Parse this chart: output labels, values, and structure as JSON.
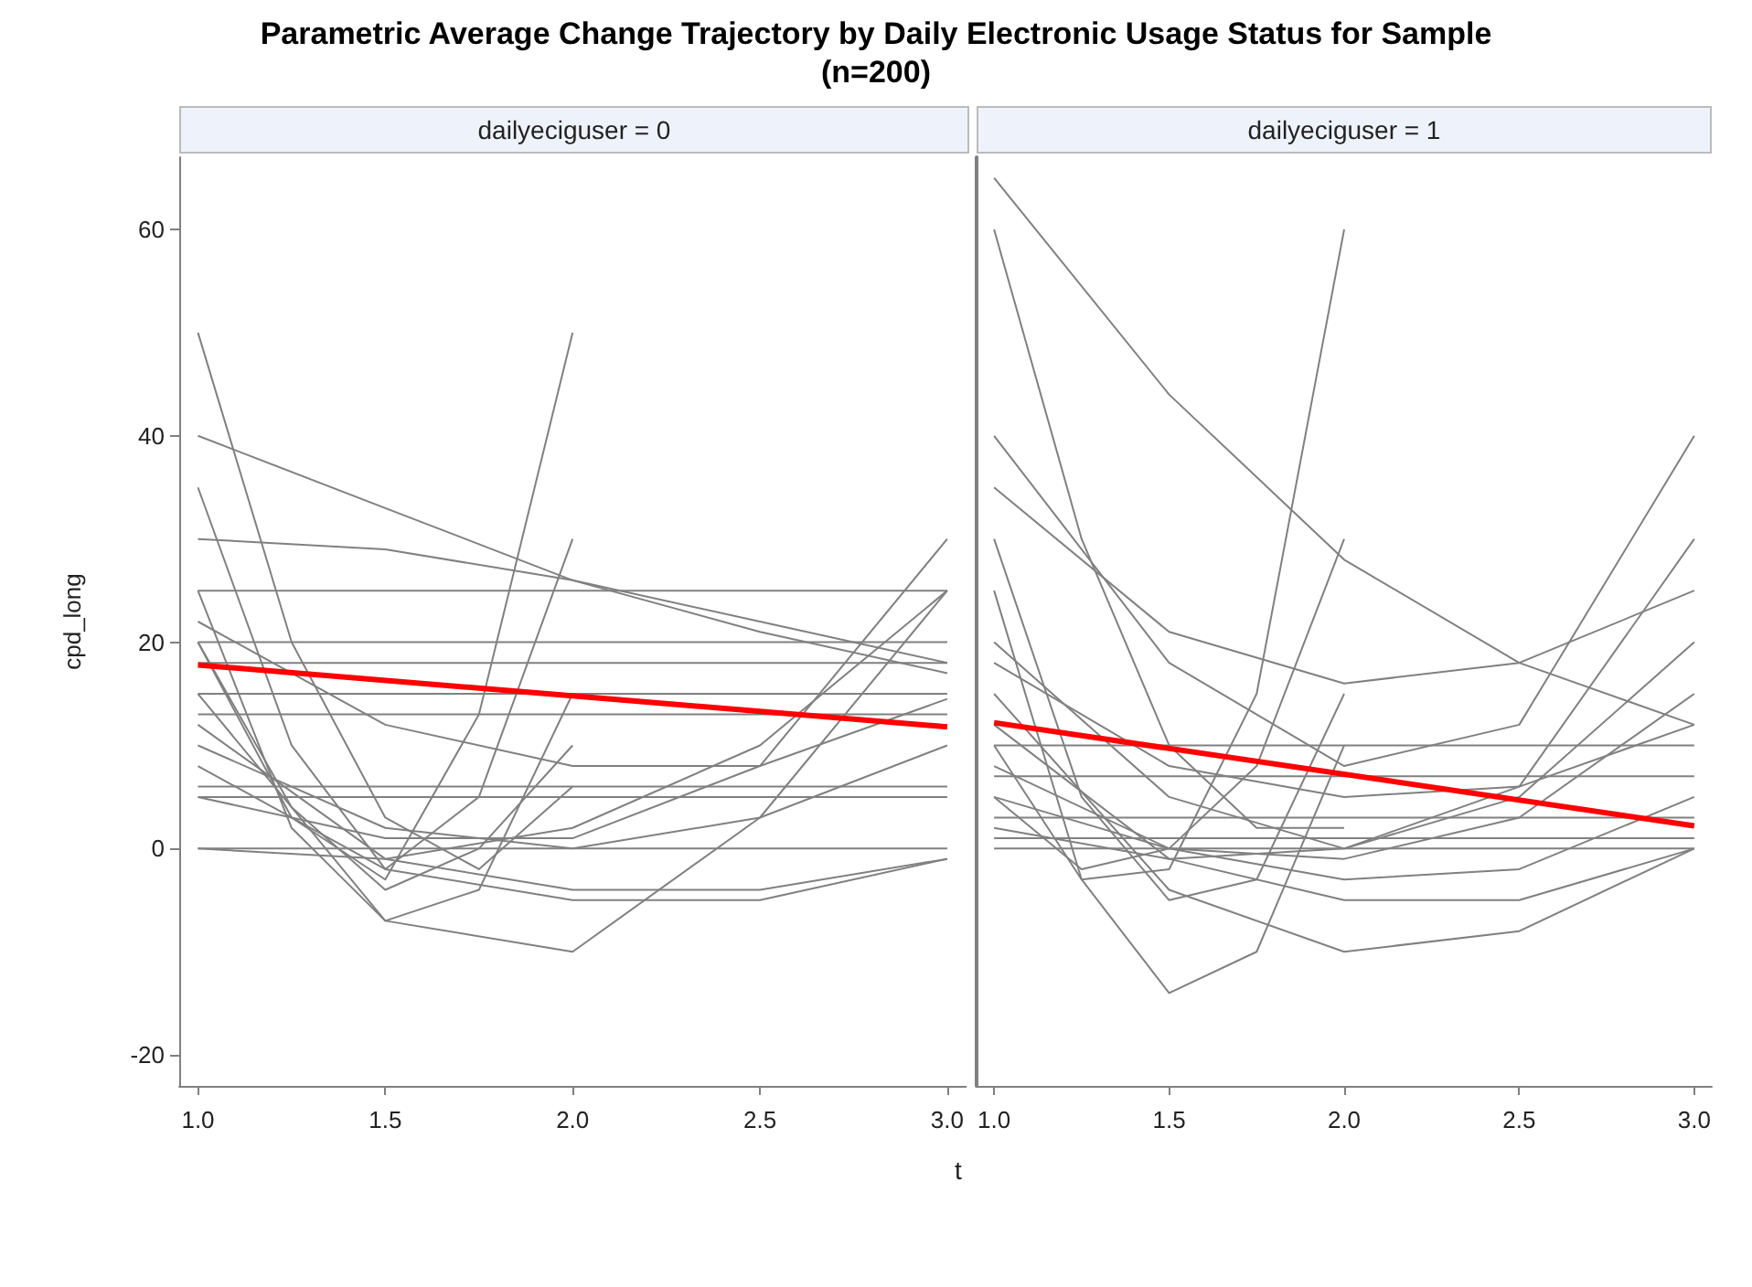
{
  "chart_data": [
    {
      "type": "line",
      "title": "Parametric Average Change Trajectory by Daily Electronic Usage Status for Sample\n(n=200)",
      "subtitle": "dailyeciguser = 0",
      "xlabel": "t",
      "ylabel": "cpd_long",
      "xlim": [
        0.95,
        3.05
      ],
      "xticks": [
        {
          "value": 1,
          "label": "1.0"
        },
        {
          "value": 1.5,
          "label": "1.5"
        },
        {
          "value": 2,
          "label": "2.0"
        },
        {
          "value": 2.5,
          "label": "2.5"
        },
        {
          "value": 3,
          "label": "3.0"
        }
      ],
      "ylim": [
        -23,
        67
      ],
      "yticks": [
        -20,
        0,
        20,
        40,
        60
      ],
      "grid": false,
      "marker": "none",
      "series": [
        {
          "color": "#808080",
          "x": [
            1,
            3
          ],
          "values": [
            25,
            25
          ]
        },
        {
          "color": "#808080",
          "x": [
            1,
            3
          ],
          "values": [
            20,
            20
          ]
        },
        {
          "color": "#808080",
          "x": [
            1,
            3
          ],
          "values": [
            18,
            18
          ]
        },
        {
          "color": "#808080",
          "x": [
            1,
            3
          ],
          "values": [
            15,
            15
          ]
        },
        {
          "color": "#808080",
          "x": [
            1,
            3
          ],
          "values": [
            13,
            13
          ]
        },
        {
          "color": "#808080",
          "x": [
            1,
            3
          ],
          "values": [
            6,
            6
          ]
        },
        {
          "color": "#808080",
          "x": [
            1,
            3
          ],
          "values": [
            5,
            5
          ]
        },
        {
          "color": "#808080",
          "x": [
            1,
            3
          ],
          "values": [
            0,
            0
          ]
        },
        {
          "color": "#808080",
          "x": [
            1,
            1.5,
            2,
            2.5,
            3
          ],
          "values": [
            40,
            33,
            26,
            21,
            17
          ]
        },
        {
          "color": "#808080",
          "x": [
            1,
            1.5,
            2,
            2.5,
            3
          ],
          "values": [
            30,
            29,
            26,
            22,
            18
          ]
        },
        {
          "color": "#808080",
          "x": [
            1,
            1.25,
            1.5,
            1.75,
            2
          ],
          "values": [
            50,
            20,
            3,
            -2,
            6
          ]
        },
        {
          "color": "#808080",
          "x": [
            1,
            1.25,
            1.5,
            1.75,
            2
          ],
          "values": [
            20,
            3,
            -3,
            13,
            50
          ]
        },
        {
          "color": "#808080",
          "x": [
            1,
            1.25,
            1.5,
            1.75,
            2
          ],
          "values": [
            35,
            10,
            -2,
            5,
            30
          ]
        },
        {
          "color": "#808080",
          "x": [
            1,
            1.25,
            1.5,
            1.75,
            2
          ],
          "values": [
            25,
            2,
            -7,
            -4,
            15
          ]
        },
        {
          "color": "#808080",
          "x": [
            1,
            1.25,
            1.5,
            1.75,
            2
          ],
          "values": [
            20,
            4,
            -4,
            0,
            10
          ]
        },
        {
          "color": "#808080",
          "x": [
            1,
            1.5,
            2,
            2.5,
            3
          ],
          "values": [
            15,
            -7,
            -10,
            3,
            25
          ]
        },
        {
          "color": "#808080",
          "x": [
            1,
            1.5,
            2,
            2.5,
            3
          ],
          "values": [
            12,
            -1,
            -4,
            -4,
            -1
          ]
        },
        {
          "color": "#808080",
          "x": [
            1,
            1.5,
            2,
            2.5,
            3
          ],
          "values": [
            8,
            -2,
            -5,
            -5,
            -1
          ]
        },
        {
          "color": "#808080",
          "x": [
            1,
            1.5,
            2,
            2.5,
            3
          ],
          "values": [
            10,
            2,
            0,
            3,
            10
          ]
        },
        {
          "color": "#808080",
          "x": [
            1,
            1.5,
            2,
            2.5,
            3
          ],
          "values": [
            5,
            1,
            1,
            8,
            30
          ]
        },
        {
          "color": "#808080",
          "x": [
            1,
            1.5,
            2,
            2.5,
            3
          ],
          "values": [
            0,
            -1,
            2,
            10,
            25
          ]
        },
        {
          "color": "#808080",
          "x": [
            1,
            1.5,
            2,
            2.5,
            3
          ],
          "values": [
            22,
            12,
            8,
            8,
            14.5
          ]
        },
        {
          "color": "#ff0000",
          "x": [
            1,
            3
          ],
          "values": [
            17.8,
            11.8
          ]
        }
      ]
    },
    {
      "type": "line",
      "subtitle": "dailyeciguser = 1",
      "xlim": [
        0.95,
        3.05
      ],
      "xticks": [
        {
          "value": 1,
          "label": "1.0"
        },
        {
          "value": 1.5,
          "label": "1.5"
        },
        {
          "value": 2,
          "label": "2.0"
        },
        {
          "value": 2.5,
          "label": "2.5"
        },
        {
          "value": 3,
          "label": "3.0"
        }
      ],
      "ylim": [
        -23,
        67
      ],
      "yticks": [
        -20,
        0,
        20,
        40,
        60
      ],
      "tick_labels": "x",
      "grid": false,
      "marker": "none",
      "series": [
        {
          "color": "#808080",
          "x": [
            1,
            3
          ],
          "values": [
            10,
            10
          ]
        },
        {
          "color": "#808080",
          "x": [
            1,
            3
          ],
          "values": [
            7,
            7
          ]
        },
        {
          "color": "#808080",
          "x": [
            1,
            3
          ],
          "values": [
            3,
            3
          ]
        },
        {
          "color": "#808080",
          "x": [
            1,
            3
          ],
          "values": [
            1,
            1
          ]
        },
        {
          "color": "#808080",
          "x": [
            1,
            3
          ],
          "values": [
            0,
            0
          ]
        },
        {
          "color": "#808080",
          "x": [
            1,
            1.5,
            2,
            2.5,
            3
          ],
          "values": [
            65,
            44,
            28,
            18,
            12
          ]
        },
        {
          "color": "#808080",
          "x": [
            1,
            1.25,
            1.5,
            1.75,
            2
          ],
          "values": [
            60,
            30,
            10,
            2,
            2
          ]
        },
        {
          "color": "#808080",
          "x": [
            1,
            1.25,
            1.5,
            1.75,
            2
          ],
          "values": [
            10,
            -3,
            -2,
            15,
            60
          ]
        },
        {
          "color": "#808080",
          "x": [
            1,
            1.25,
            1.5,
            1.75,
            2
          ],
          "values": [
            5,
            -2,
            0,
            8,
            30
          ]
        },
        {
          "color": "#808080",
          "x": [
            1,
            1.5,
            2,
            2.5,
            3
          ],
          "values": [
            35,
            21,
            16,
            18,
            25
          ]
        },
        {
          "color": "#808080",
          "x": [
            1,
            1.5,
            2,
            2.5,
            3
          ],
          "values": [
            40,
            18,
            8,
            12,
            40
          ]
        },
        {
          "color": "#808080",
          "x": [
            1,
            1.5,
            2,
            2.5,
            3
          ],
          "values": [
            20,
            5,
            0,
            6,
            30
          ]
        },
        {
          "color": "#808080",
          "x": [
            1,
            1.5,
            2,
            2.5,
            3
          ],
          "values": [
            15,
            -4,
            -10,
            -8,
            0
          ]
        },
        {
          "color": "#808080",
          "x": [
            1,
            1.25,
            1.5,
            1.75,
            2
          ],
          "values": [
            25,
            -3,
            -14,
            -10,
            10
          ]
        },
        {
          "color": "#808080",
          "x": [
            1,
            1.25,
            1.5,
            1.75,
            2
          ],
          "values": [
            30,
            5,
            -5,
            -3,
            15
          ]
        },
        {
          "color": "#808080",
          "x": [
            1,
            1.5,
            2,
            2.5,
            3
          ],
          "values": [
            12,
            -1,
            -5,
            -5,
            0
          ]
        },
        {
          "color": "#808080",
          "x": [
            1,
            1.5,
            2,
            2.5,
            3
          ],
          "values": [
            8,
            0,
            -3,
            -2,
            5
          ]
        },
        {
          "color": "#808080",
          "x": [
            1,
            1.5,
            2,
            2.5,
            3
          ],
          "values": [
            5,
            0,
            -1,
            3,
            15
          ]
        },
        {
          "color": "#808080",
          "x": [
            1,
            1.5,
            2,
            2.5,
            3
          ],
          "values": [
            2,
            -1,
            0,
            5,
            20
          ]
        },
        {
          "color": "#808080",
          "x": [
            1,
            1.5,
            2,
            2.5,
            3
          ],
          "values": [
            18,
            8,
            5,
            6,
            12
          ]
        },
        {
          "color": "#ff0000",
          "x": [
            1,
            3
          ],
          "values": [
            12.2,
            2.2
          ]
        }
      ]
    }
  ]
}
